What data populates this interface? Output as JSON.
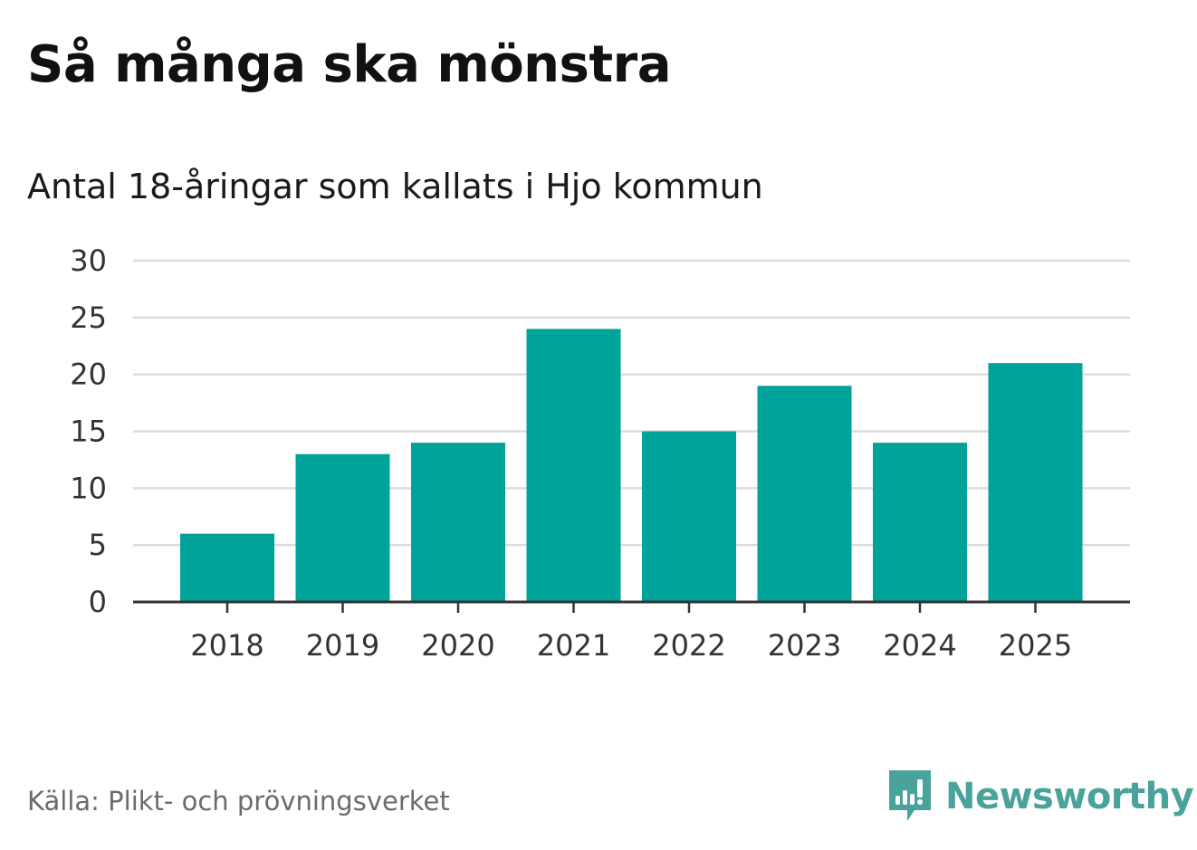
{
  "header": {
    "title": "Så många ska mönstra",
    "subtitle": "Antal 18-åringar som kallats i Hjo kommun"
  },
  "footer": {
    "source": "Källa: Plikt- och prövningsverket",
    "brand": "Newsworthy"
  },
  "colors": {
    "bar": "#00a39a",
    "grid": "#dddddd",
    "axis": "#333333",
    "brand": "#4aa39b"
  },
  "chart_data": {
    "type": "bar",
    "title": "Så många ska mönstra",
    "subtitle": "Antal 18-åringar som kallats i Hjo kommun",
    "xlabel": "",
    "ylabel": "",
    "categories": [
      "2018",
      "2019",
      "2020",
      "2021",
      "2022",
      "2023",
      "2024",
      "2025"
    ],
    "values": [
      6,
      13,
      14,
      24,
      15,
      19,
      14,
      21
    ],
    "ylim": [
      0,
      30
    ],
    "yticks": [
      0,
      5,
      10,
      15,
      20,
      25,
      30
    ],
    "grid": true,
    "legend": "none"
  }
}
